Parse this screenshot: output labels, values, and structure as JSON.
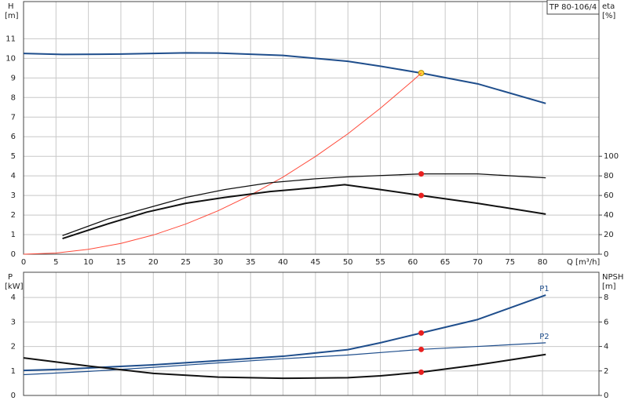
{
  "chart_data": [
    {
      "type": "line",
      "legend_box": "TP 80-106/4",
      "y_label": "H",
      "y_unit": "[m]",
      "y2_label": "eta",
      "y2_unit": "[%]",
      "x_label": "Q [m³/h]",
      "xlim": [
        0,
        88.7
      ],
      "xticks": [
        0,
        5,
        10,
        15,
        20,
        25,
        30,
        35,
        40,
        45,
        50,
        55,
        60,
        65,
        70,
        75,
        80
      ],
      "ylim": [
        0,
        12.9
      ],
      "yticks": [
        0,
        1,
        2,
        3,
        4,
        5,
        6,
        7,
        8,
        9,
        10,
        11
      ],
      "y2lim": [
        0,
        258
      ],
      "y2ticks": [
        0,
        20,
        40,
        60,
        80,
        100
      ],
      "grid": true,
      "series": [
        {
          "color": "#1f4e8c",
          "line_width": 2,
          "x": [
            0,
            6,
            15,
            25,
            30,
            40,
            50,
            55,
            61.3,
            70,
            80.5
          ],
          "values": [
            10.25,
            10.2,
            10.22,
            10.28,
            10.27,
            10.15,
            9.85,
            9.6,
            9.25,
            8.7,
            7.7
          ],
          "marker": {
            "x": 61.3,
            "value": 9.25,
            "color": "#ffd23a"
          }
        },
        {
          "color": "#ff4a3a",
          "line_width": 1,
          "x": [
            0,
            5,
            10,
            15,
            20,
            25,
            30,
            35,
            40,
            45,
            50,
            55,
            60,
            61.3
          ],
          "values": [
            0,
            0.06,
            0.25,
            0.55,
            0.98,
            1.54,
            2.22,
            3.02,
            3.94,
            4.99,
            6.15,
            7.45,
            8.86,
            9.25
          ]
        },
        {
          "color": "#111111",
          "line_width": 1.3,
          "axis": "y2",
          "x": [
            6,
            13,
            19,
            25,
            31,
            38,
            45,
            50,
            61.3,
            70,
            80.5
          ],
          "values": [
            19,
            36,
            47,
            58,
            66,
            73,
            77,
            79,
            82,
            82,
            78
          ],
          "marker": {
            "x": 61.3,
            "value": 82,
            "color": "#e82020"
          }
        },
        {
          "color": "#111111",
          "line_width": 2,
          "axis": "y2",
          "x": [
            6,
            13,
            19,
            25,
            31,
            38,
            45,
            49.5,
            55,
            61.3,
            70,
            80.5
          ],
          "values": [
            16,
            31,
            43,
            52,
            58,
            64,
            68,
            71,
            66,
            60,
            52,
            41
          ],
          "marker": {
            "x": 61.3,
            "value": 60,
            "color": "#e82020"
          }
        }
      ]
    },
    {
      "type": "line",
      "y_label": "P",
      "y_unit": "[kW]",
      "y2_label": "NPSH",
      "y2_unit": "[m]",
      "xlim": [
        0,
        88.7
      ],
      "xticks": [
        0,
        5,
        10,
        15,
        20,
        25,
        30,
        35,
        40,
        45,
        50,
        55,
        60,
        65,
        70,
        75,
        80
      ],
      "ylim": [
        0,
        5.03
      ],
      "yticks": [
        0,
        1,
        2,
        3,
        4
      ],
      "y2lim": [
        0,
        10.06
      ],
      "y2ticks": [
        0,
        2,
        4,
        6,
        8
      ],
      "grid": true,
      "series": [
        {
          "name": "P1",
          "color": "#1f4e8c",
          "line_width": 2,
          "x": [
            0,
            6,
            20,
            30,
            40,
            50,
            55,
            61.3,
            70,
            80.5
          ],
          "values": [
            1.02,
            1.07,
            1.25,
            1.42,
            1.6,
            1.87,
            2.15,
            2.55,
            3.1,
            4.1
          ],
          "marker": {
            "x": 61.3,
            "value": 2.55,
            "color": "#e82020"
          }
        },
        {
          "name": "P2",
          "color": "#1f4e8c",
          "line_width": 1.2,
          "x": [
            0,
            10,
            20,
            30,
            40,
            50,
            61.3,
            70,
            80.5
          ],
          "values": [
            0.85,
            0.98,
            1.15,
            1.33,
            1.5,
            1.65,
            1.88,
            2.0,
            2.15
          ],
          "marker": {
            "x": 61.3,
            "value": 1.88,
            "color": "#e82020"
          }
        },
        {
          "color": "#111111",
          "line_width": 2,
          "axis": "y2",
          "x": [
            0,
            10,
            20,
            30,
            40,
            50,
            55,
            61.3,
            70,
            75,
            80.5
          ],
          "values": [
            3.07,
            2.4,
            1.8,
            1.5,
            1.4,
            1.45,
            1.6,
            1.9,
            2.5,
            2.9,
            3.35
          ],
          "marker": {
            "x": 61.3,
            "value": 1.9,
            "color": "#e82020"
          }
        }
      ]
    }
  ]
}
